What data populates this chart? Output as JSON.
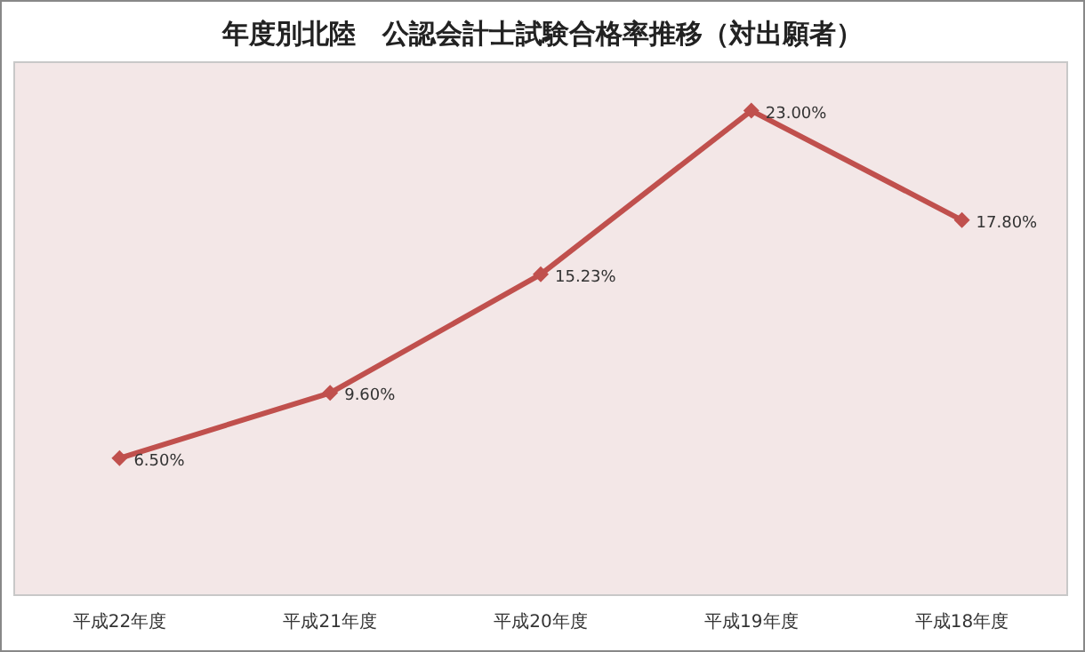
{
  "chart_data": {
    "type": "line",
    "title": "年度別北陸　公認会計士試験合格率推移（対出願者）",
    "categories": [
      "平成22年度",
      "平成21年度",
      "平成20年度",
      "平成19年度",
      "平成18年度"
    ],
    "series": [
      {
        "color": "#c0504d",
        "values": [
          6.5,
          9.6,
          15.23,
          23.0,
          17.8
        ],
        "value_labels": [
          "6.50%",
          "9.60%",
          "15.23%",
          "23.00%",
          "17.80%"
        ]
      }
    ],
    "marker": "diamond",
    "line_style": "solid",
    "grid": false
  }
}
